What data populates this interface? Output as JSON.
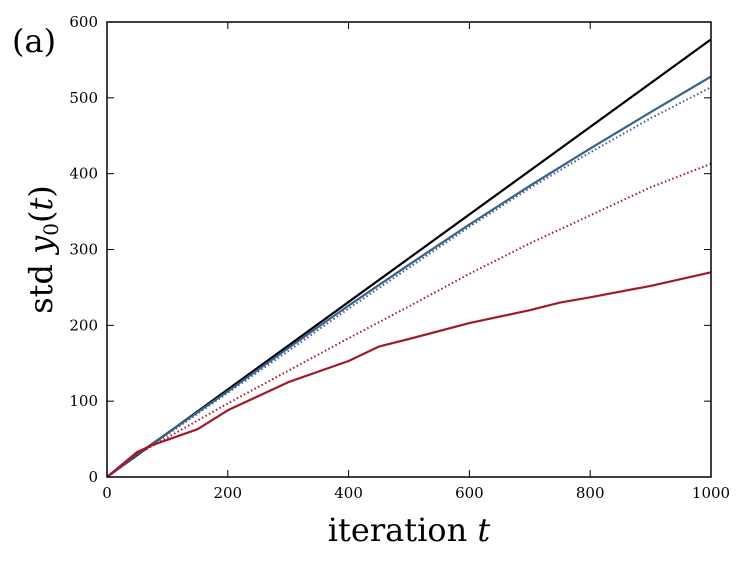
{
  "chart_data": {
    "type": "line",
    "panel_label": "(a)",
    "xlabel": "iteration t",
    "ylabel": "std y0(t)",
    "xlim": [
      0,
      1000
    ],
    "ylim": [
      0,
      600
    ],
    "x_ticks": [
      0,
      200,
      400,
      600,
      800,
      1000
    ],
    "y_ticks": [
      0,
      100,
      200,
      300,
      400,
      500,
      600
    ],
    "grid": false,
    "legend": "none",
    "series": [
      {
        "color": "#000000",
        "style": "solid",
        "x": [
          0,
          1000
        ],
        "y": [
          0,
          577
        ]
      },
      {
        "color": "#3a5f8a",
        "style": "solid",
        "x": [
          0,
          50,
          100,
          200,
          300,
          400,
          500,
          600,
          700,
          800,
          900,
          1000
        ],
        "y": [
          0,
          30,
          58,
          113,
          170,
          226,
          280,
          333,
          384,
          433,
          481,
          528
        ]
      },
      {
        "color": "#3a5f8a",
        "style": "dotted",
        "x": [
          0,
          50,
          100,
          200,
          300,
          400,
          500,
          600,
          700,
          800,
          900,
          1000
        ],
        "y": [
          0,
          30,
          56,
          111,
          166,
          222,
          276,
          330,
          381,
          428,
          473,
          514
        ]
      },
      {
        "color": "#a01a2a",
        "style": "dotted",
        "x": [
          0,
          50,
          100,
          200,
          300,
          400,
          500,
          600,
          700,
          800,
          900,
          1000
        ],
        "y": [
          0,
          30,
          52,
          97,
          140,
          183,
          225,
          268,
          308,
          345,
          382,
          413
        ]
      },
      {
        "color": "#a01a2a",
        "style": "solid",
        "x": [
          0,
          50,
          75,
          100,
          150,
          200,
          300,
          400,
          450,
          500,
          600,
          700,
          750,
          800,
          900,
          1000
        ],
        "y": [
          0,
          33,
          42,
          49,
          63,
          88,
          125,
          153,
          172,
          182,
          203,
          220,
          230,
          237,
          252,
          270
        ]
      }
    ]
  }
}
